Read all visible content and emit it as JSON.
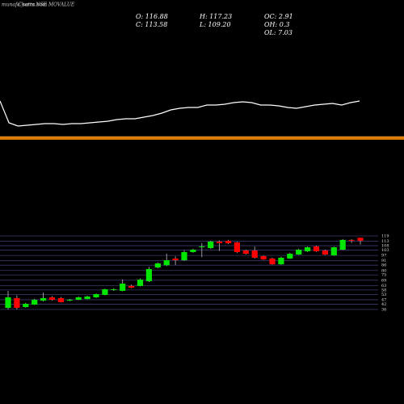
{
  "title": [
    "munafa_sutra.com",
    "Charts NSE MOVALUE"
  ],
  "stats": [
    [
      "O: 116.88",
      "C: 113.58"
    ],
    [
      "H: 117.23",
      "L: 109.20"
    ],
    [
      "OC: 2.91",
      "OH: 0.3",
      "OL: 7.03"
    ]
  ],
  "chart_data": [
    {
      "type": "line",
      "color": "#ffffff",
      "ylim": [
        0,
        60
      ],
      "values": [
        35,
        8,
        4,
        5,
        6,
        7,
        7,
        6,
        7,
        7,
        8,
        9,
        10,
        12,
        13,
        13,
        15,
        17,
        20,
        24,
        26,
        27,
        27,
        30,
        30,
        31,
        33,
        34,
        33,
        30,
        30,
        29,
        27,
        26,
        28,
        30,
        31,
        32,
        30,
        33,
        35
      ]
    },
    {
      "type": "candlestick",
      "up_color": "#00e600",
      "down_color": "#ff0000",
      "grid": true,
      "grid_color": "#3a3a6a",
      "ylim": [
        36,
        119
      ],
      "yticks": [
        119,
        113,
        108,
        103,
        97,
        91,
        86,
        80,
        75,
        69,
        63,
        58,
        53,
        47,
        42,
        36
      ],
      "open": [
        37.8,
        48.8,
        38.7,
        41.5,
        46,
        49.7,
        48.8,
        46,
        46.9,
        47.8,
        49.7,
        52.4,
        58.2,
        57,
        62.5,
        62.5,
        67.9,
        83.4,
        86,
        93.5,
        91.6,
        100.8,
        107.2,
        105.3,
        112.6,
        113.5,
        111.7,
        102.6,
        102.6,
        96.2,
        93.5,
        87,
        93.5,
        98,
        101.7,
        107.2,
        102.6,
        97.1,
        103.5,
        114.5,
        116.88
      ],
      "high": [
        57,
        52,
        43.5,
        48,
        55,
        51,
        50,
        48,
        50.5,
        51.5,
        54,
        59.5,
        60,
        70,
        64,
        71,
        84,
        89,
        99,
        96,
        103,
        104.5,
        111,
        113.5,
        114,
        114.5,
        112.5,
        103.5,
        107,
        97,
        94.5,
        95.5,
        100,
        104.5,
        107,
        108,
        103.5,
        107,
        115.5,
        115.5,
        117.23
      ],
      "low": [
        36,
        36,
        38,
        41,
        45,
        46,
        44,
        45.5,
        46.5,
        47.5,
        49,
        52,
        57,
        56.5,
        60,
        62,
        67,
        82.5,
        85,
        86,
        91,
        100,
        95,
        104.5,
        102,
        110,
        100,
        98,
        93.5,
        92,
        86.5,
        86.5,
        93,
        97.5,
        101,
        101,
        97.5,
        96.5,
        103,
        111,
        109.2
      ],
      "close": [
        49.7,
        37.8,
        42.4,
        46.9,
        48.8,
        46.9,
        44.2,
        46.9,
        49.7,
        50.6,
        53.3,
        58.8,
        58.8,
        65.2,
        60.6,
        69.7,
        81.6,
        88,
        91.6,
        91.6,
        100.8,
        103.5,
        107.2,
        112.6,
        110.8,
        110.8,
        100.8,
        98.9,
        94.4,
        92.5,
        87,
        94.4,
        98.9,
        103.5,
        106.2,
        101.7,
        98,
        106.2,
        114.5,
        113.6,
        113.58
      ]
    }
  ]
}
